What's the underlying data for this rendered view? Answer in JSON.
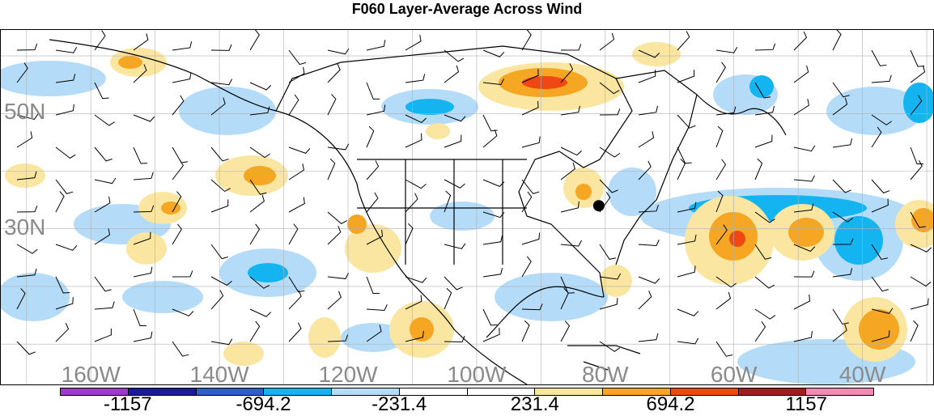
{
  "title": "F060 Layer-Average Across Wind",
  "map": {
    "lat_labels": [
      {
        "text": "50N",
        "lat": 50
      },
      {
        "text": "30N",
        "lat": 30
      }
    ],
    "lon_labels": [
      {
        "text": "160W",
        "lon": -160
      },
      {
        "text": "140W",
        "lon": -140
      },
      {
        "text": "120W",
        "lon": -120
      },
      {
        "text": "100W",
        "lon": -100
      },
      {
        "text": "80W",
        "lon": -80
      },
      {
        "text": "60W",
        "lon": -60
      },
      {
        "text": "40W",
        "lon": -40
      }
    ],
    "station_marker": {
      "lat": 34.0,
      "lon": -81.0
    }
  },
  "colorbar": {
    "colors": [
      "#9a3cc8",
      "#1a1a9a",
      "#2e5fc8",
      "#14b4f0",
      "#b4dcf8",
      "#ffffff",
      "#ffffff",
      "#fae6a0",
      "#f5a623",
      "#f04814",
      "#a01e1e",
      "#f08cb4"
    ],
    "labels": [
      {
        "text": "-1157",
        "index": 1
      },
      {
        "text": "-694.2",
        "index": 3
      },
      {
        "text": "-231.4",
        "index": 5
      },
      {
        "text": "231.4",
        "index": 7
      },
      {
        "text": "694.2",
        "index": 9
      },
      {
        "text": "1157",
        "index": 11
      }
    ]
  }
}
